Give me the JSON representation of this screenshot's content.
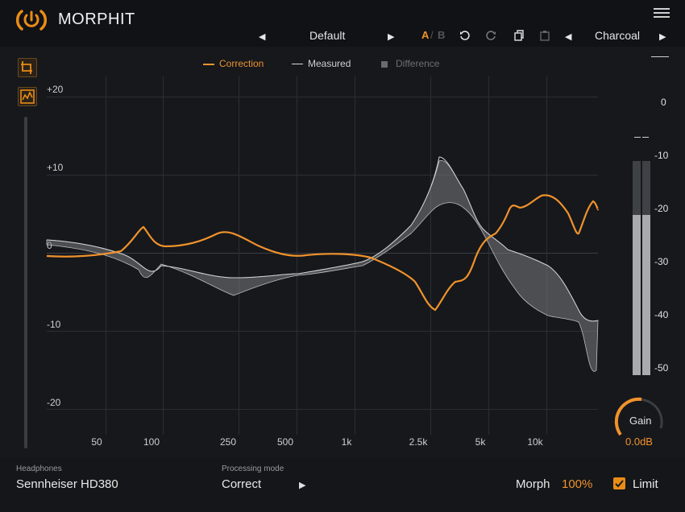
{
  "app": {
    "name": "MORPHIT"
  },
  "header": {
    "preset_left_arrow": "◀",
    "preset_name": "Default",
    "preset_right_arrow": "▶",
    "ab_a": "A",
    "ab_sep": "/",
    "ab_b": "B",
    "theme_left_arrow": "◀",
    "theme_name": "Charcoal",
    "theme_right_arrow": "▶",
    "icons": [
      "undo-icon",
      "redo-icon",
      "copy-icon",
      "paste-icon"
    ]
  },
  "legend": {
    "correction": "Correction",
    "measured": "Measured",
    "difference": "Difference",
    "correction_color": "#f0922b",
    "measured_color": "#d8d8d8",
    "difference_color": "#8a8a8a"
  },
  "y_axis": {
    "labels": [
      "+20",
      "+10",
      "0",
      "-10",
      "-20"
    ]
  },
  "x_axis": {
    "labels": [
      "50",
      "100",
      "250",
      "500",
      "1k",
      "2.5k",
      "5k",
      "10k"
    ]
  },
  "meter": {
    "labels": [
      "0",
      "-10",
      "-20",
      "-30",
      "-40",
      "-50"
    ],
    "level": 0.75
  },
  "gain": {
    "label": "Gain",
    "value": "0.0dB"
  },
  "headphones": {
    "label": "Headphones",
    "value": "Sennheiser HD380"
  },
  "processing": {
    "label": "Processing mode",
    "value": "Correct",
    "arrow": "▶"
  },
  "morph": {
    "label": "Morph",
    "value": "100%"
  },
  "limit": {
    "label": "Limit",
    "checked": true
  },
  "colors": {
    "accent": "#f0922b",
    "bg": "#16181c"
  }
}
